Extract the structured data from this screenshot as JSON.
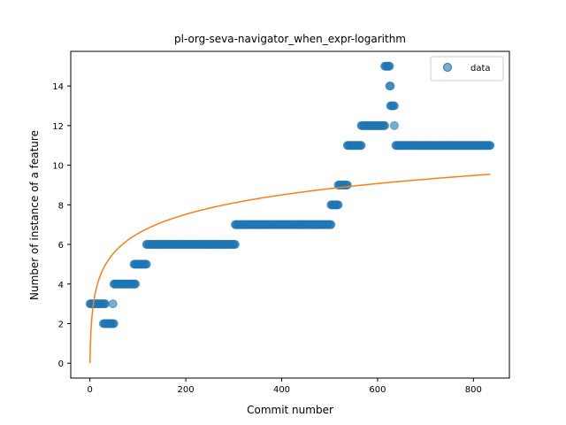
{
  "chart_data": {
    "type": "scatter",
    "title": "pl-org-seva-navigator_when_expr-logarithm",
    "xlabel": "Commit number",
    "ylabel": "Number of instance of a feature",
    "xlim": [
      -40,
      875
    ],
    "ylim": [
      -0.75,
      15.75
    ],
    "xticks": [
      0,
      200,
      400,
      600,
      800
    ],
    "yticks": [
      0,
      2,
      4,
      6,
      8,
      10,
      12,
      14
    ],
    "legend_position": "top-right",
    "point_segments": [
      {
        "x_start": 0,
        "x_end": 32,
        "y": 3
      },
      {
        "x_start": 28,
        "x_end": 50,
        "y": 2
      },
      {
        "x_start": 48,
        "x_end": 48,
        "y": 3
      },
      {
        "x_start": 50,
        "x_end": 95,
        "y": 4
      },
      {
        "x_start": 92,
        "x_end": 118,
        "y": 5
      },
      {
        "x_start": 118,
        "x_end": 303,
        "y": 6
      },
      {
        "x_start": 303,
        "x_end": 503,
        "y": 7
      },
      {
        "x_start": 503,
        "x_end": 518,
        "y": 8
      },
      {
        "x_start": 518,
        "x_end": 537,
        "y": 9
      },
      {
        "x_start": 537,
        "x_end": 566,
        "y": 11
      },
      {
        "x_start": 566,
        "x_end": 615,
        "y": 12
      },
      {
        "x_start": 615,
        "x_end": 625,
        "y": 15
      },
      {
        "x_start": 625,
        "x_end": 627,
        "y": 14
      },
      {
        "x_start": 627,
        "x_end": 635,
        "y": 13
      },
      {
        "x_start": 635,
        "x_end": 635,
        "y": 12
      },
      {
        "x_start": 638,
        "x_end": 835,
        "y": 11
      }
    ],
    "series": [
      {
        "name": "data",
        "kind": "points",
        "color": "#1f77b4"
      },
      {
        "kind": "fit-curve",
        "color": "#ff7f0e",
        "formula": "y = 1.418 * ln(x + 1)",
        "x_range": [
          0,
          835
        ]
      }
    ]
  }
}
